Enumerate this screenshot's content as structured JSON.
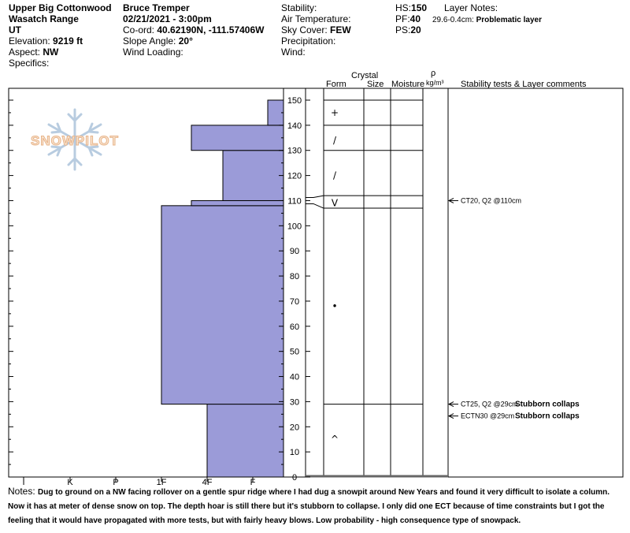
{
  "header": {
    "location1": "Upper Big Cottonwood",
    "location2": "Wasatch Range",
    "state": "UT",
    "elevation_label": "Elevation:",
    "elevation_value": "9219 ft",
    "aspect_label": "Aspect:",
    "aspect_value": "NW",
    "specifics_label": "Specifics:",
    "observer": "Bruce Tremper",
    "datetime": "02/21/2021 - 3:00pm",
    "coord_label": "Co-ord:",
    "coord_value": "40.62190N, -111.57406W",
    "slope_label": "Slope Angle:",
    "slope_value": "20°",
    "wind_loading_label": "Wind Loading:",
    "stability_label": "Stability:",
    "air_temp_label": "Air Temperature:",
    "sky_label": "Sky Cover:",
    "sky_value": "FEW",
    "precip_label": "Precipitation:",
    "wind_label": "Wind:",
    "hs_label": "HS:",
    "hs_value": "150",
    "pf_label": "PF:",
    "pf_value": "40",
    "ps_label": "PS:",
    "ps_value": "20",
    "layer_notes_label": "Layer Notes:",
    "layer_note_range": "29.6-0.4cm:",
    "layer_note_text": "Problematic layer"
  },
  "columns": {
    "crystal": "Crystal",
    "form": "Form",
    "size": "Size",
    "moisture": "Moisture",
    "rho": "ρ",
    "rho_unit": "kg/m³",
    "stability": "Stability tests & Layer comments"
  },
  "watermark": "SNOWPILOT",
  "chart_data": {
    "type": "snow-profile",
    "depth_ticks": [
      0,
      10,
      20,
      30,
      40,
      50,
      60,
      70,
      80,
      90,
      100,
      110,
      120,
      130,
      140,
      150
    ],
    "depth_range": [
      0,
      150
    ],
    "hardness_ticks": [
      "I",
      "K",
      "P",
      "1F",
      "4F",
      "F"
    ],
    "hardness_layers": [
      {
        "bottom": 0,
        "top": 29,
        "hardness": "4F"
      },
      {
        "bottom": 29,
        "top": 108,
        "hardness": "1F"
      },
      {
        "bottom": 108,
        "top": 110,
        "hardness": "4F+"
      },
      {
        "bottom": 110,
        "top": 130,
        "hardness": "4F-"
      },
      {
        "bottom": 130,
        "top": 140,
        "hardness": "4F+"
      },
      {
        "bottom": 140,
        "top": 150,
        "hardness": "F-"
      }
    ],
    "layer_boundaries": [
      150,
      140,
      130,
      112,
      107,
      29
    ],
    "crystal_forms": [
      {
        "depth": 145,
        "symbol": "+"
      },
      {
        "depth": 134,
        "symbol": "/"
      },
      {
        "depth": 120,
        "symbol": "/"
      },
      {
        "depth": 109,
        "symbol": "V"
      },
      {
        "depth": 68,
        "symbol": "•"
      },
      {
        "depth": 15,
        "symbol": "^"
      }
    ],
    "stability_tests": [
      {
        "depth": 110,
        "text": "CT20, Q2 @110cm",
        "comment": ""
      },
      {
        "depth": 29,
        "text": "CT25, Q2 @29cm",
        "comment": "Stubborn collaps"
      },
      {
        "depth": 29,
        "text": "ECTN30 @29cm",
        "comment": "Stubborn collaps"
      }
    ]
  },
  "notes": {
    "label": "Notes:",
    "text": "Dug to ground on a NW facing rollover on a gentle spur ridge where I had dug a snowpit around New Years and found it very difficult to isolate a column.  Now it has at meter of dense snow on top.  The depth hoar is still there but it's stubborn to collapse.  I only did one ECT because of time constraints but I got the feeling that it would have propagated with more tests, but with fairly heavy blows.  Low probability - high consequence type of snowpack."
  }
}
